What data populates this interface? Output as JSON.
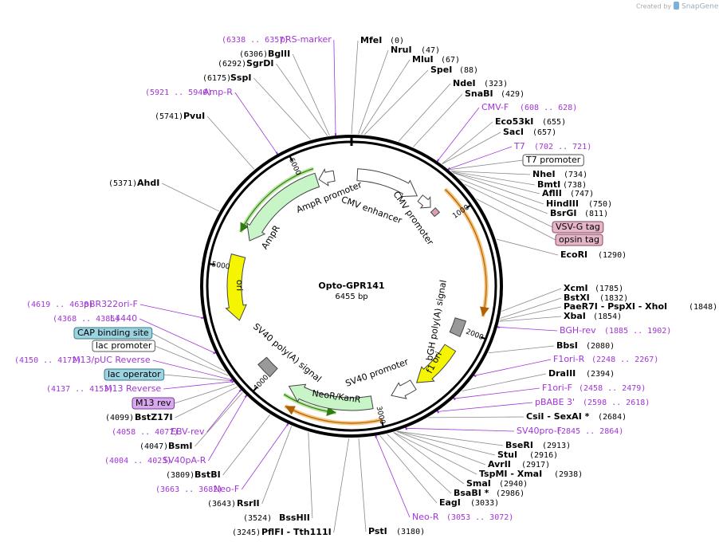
{
  "credit": "Created by",
  "brand": "SnapGene",
  "map": {
    "name": "Opto-GPR141",
    "length": "6455 bp"
  },
  "ruler": [
    "1000",
    "2000",
    "3000",
    "4000",
    "5000",
    "6000"
  ],
  "features": [
    "AmpR promoter",
    "AmpR",
    "CMV enhancer",
    "CMV promoter",
    "ori",
    "SV40 poly(A) signal",
    "NeoR/KanR",
    "SV40 promoter",
    "f1 ori",
    "bGH poly(A) signal"
  ],
  "labels": [
    {
      "name": "MfeI",
      "pos": "(0)"
    },
    {
      "name": "NruI",
      "pos": "(47)"
    },
    {
      "name": "MluI",
      "pos": "(67)"
    },
    {
      "name": "SpeI",
      "pos": "(88)"
    },
    {
      "name": "NdeI",
      "pos": "(323)"
    },
    {
      "name": "SnaBI",
      "pos": "(429)"
    },
    {
      "name": "CMV-F",
      "pos": "(608 .. 628)"
    },
    {
      "name": "Eco53kI",
      "pos": "(655)"
    },
    {
      "name": "SacI",
      "pos": "(657)"
    },
    {
      "name": "T7",
      "pos": "(702 .. 721)"
    },
    {
      "name": "T7 promoter"
    },
    {
      "name": "NheI",
      "pos": "(734)"
    },
    {
      "name": "BmtI",
      "pos": "(738)"
    },
    {
      "name": "AflII",
      "pos": "(747)"
    },
    {
      "name": "HindIII",
      "pos": "(750)"
    },
    {
      "name": "BsrGI",
      "pos": "(811)"
    },
    {
      "name": "VSV-G tag"
    },
    {
      "name": "opsin tag"
    },
    {
      "name": "EcoRI",
      "pos": "(1290)"
    },
    {
      "name": "XcmI",
      "pos": "(1785)"
    },
    {
      "name": "BstXI",
      "pos": "(1832)"
    },
    {
      "name": "PaeR7I - PspXI - XhoI",
      "pos": "(1848)"
    },
    {
      "name": "XbaI",
      "pos": "(1854)"
    },
    {
      "name": "BGH-rev",
      "pos": "(1885 .. 1902)"
    },
    {
      "name": "BbsI",
      "pos": "(2080)"
    },
    {
      "name": "F1ori-R",
      "pos": "(2248 .. 2267)"
    },
    {
      "name": "DraIII",
      "pos": "(2394)"
    },
    {
      "name": "F1ori-F",
      "pos": "(2458 .. 2479)"
    },
    {
      "name": "pBABE 3'",
      "pos": "(2598 .. 2618)"
    },
    {
      "name": "CsiI - SexAI *",
      "pos": "(2684)"
    },
    {
      "name": "SV40pro-F",
      "pos": "(2845 .. 2864)"
    },
    {
      "name": "BseRI",
      "pos": "(2913)"
    },
    {
      "name": "StuI",
      "pos": "(2916)"
    },
    {
      "name": "AvrII",
      "pos": "(2917)"
    },
    {
      "name": "TspMI - XmaI",
      "pos": "(2938)"
    },
    {
      "name": "SmaI",
      "pos": "(2940)"
    },
    {
      "name": "BsaBI *",
      "pos": "(2986)"
    },
    {
      "name": "EagI",
      "pos": "(3033)"
    },
    {
      "name": "Neo-R",
      "pos": "(3053 .. 3072)"
    },
    {
      "name": "PstI",
      "pos": "(3180)"
    },
    {
      "name": "PflFI - Tth111I",
      "pos": "(3245)"
    },
    {
      "name": "BssHII",
      "pos": "(3524)"
    },
    {
      "name": "RsrII",
      "pos": "(3643)"
    },
    {
      "name": "Neo-F",
      "pos": "(3663 .. 3682)"
    },
    {
      "name": "BstBI",
      "pos": "(3809)"
    },
    {
      "name": "SV40pA-R",
      "pos": "(4004 .. 4023)"
    },
    {
      "name": "BsmI",
      "pos": "(4047)"
    },
    {
      "name": "EBV-rev",
      "pos": "(4058 .. 4077)"
    },
    {
      "name": "BstZ17I",
      "pos": "(4099)"
    },
    {
      "name": "M13 rev"
    },
    {
      "name": "M13 Reverse",
      "pos": "(4137 .. 4153)"
    },
    {
      "name": "lac operator"
    },
    {
      "name": "M13/pUC Reverse",
      "pos": "(4150 .. 4172)"
    },
    {
      "name": "lac promoter"
    },
    {
      "name": "CAP binding site"
    },
    {
      "name": "L4440",
      "pos": "(4368 .. 4385)"
    },
    {
      "name": "pBR322ori-F",
      "pos": "(4619 .. 4638)"
    },
    {
      "name": "AhdI",
      "pos": "(5371)"
    },
    {
      "name": "PvuI",
      "pos": "(5741)"
    },
    {
      "name": "Amp-R",
      "pos": "(5921 .. 5940)"
    },
    {
      "name": "SspI",
      "pos": "(6175)"
    },
    {
      "name": "SgrDI",
      "pos": "(6292)"
    },
    {
      "name": "BglII",
      "pos": "(6306)"
    },
    {
      "name": "pRS-marker",
      "pos": "(6338 .. 6357)"
    }
  ]
}
